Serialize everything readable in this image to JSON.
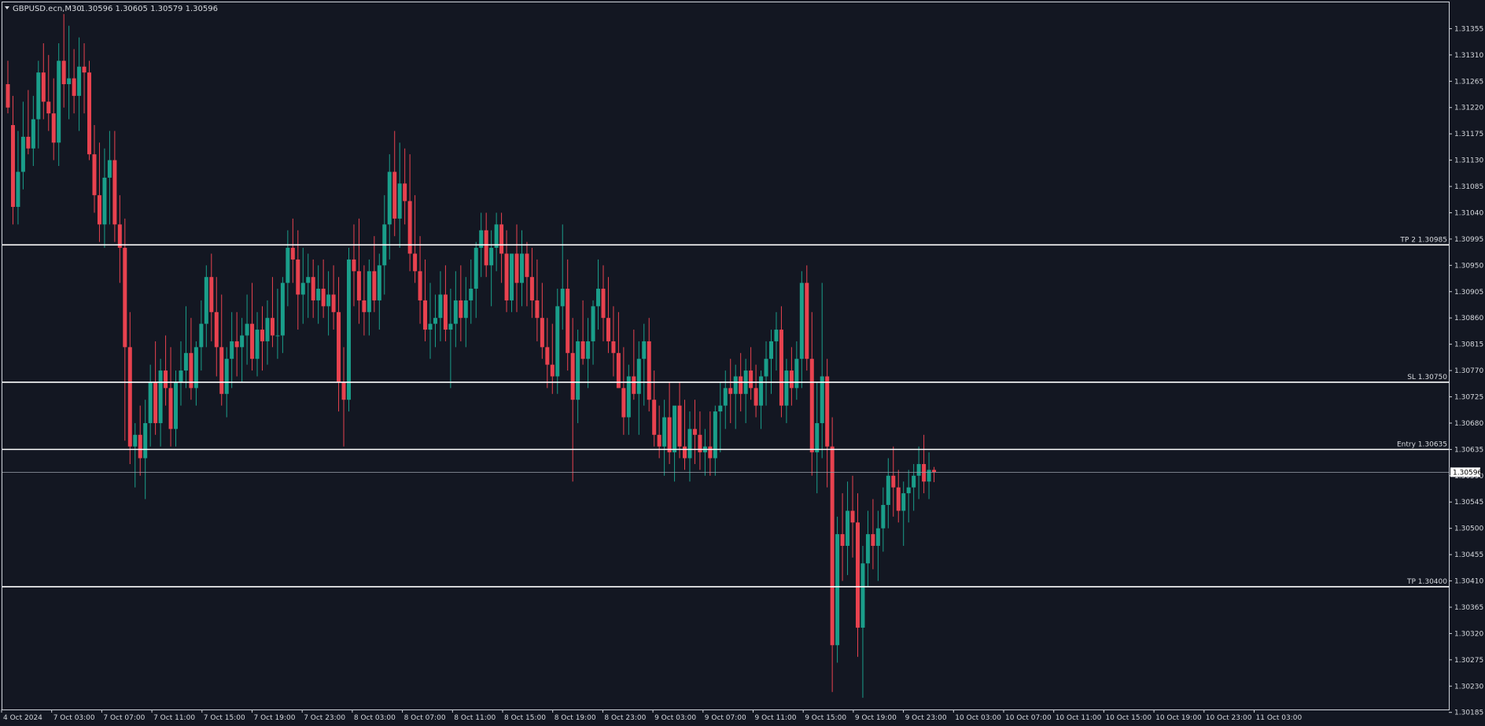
{
  "header": {
    "symbol": "GBPUSD.ecn,M30",
    "ohlc": "1.30596 1.30605 1.30579 1.30596"
  },
  "colors": {
    "background": "#131722",
    "frame": "#cfd3da",
    "text": "#d6d9de",
    "bull": "#1a9e8a",
    "bear": "#e8424f",
    "level_line": "#ffffff"
  },
  "chart_data": {
    "type": "candlestick",
    "timeframe": "M30",
    "ylim": [
      1.3019,
      1.314
    ],
    "y_ticks": [
      "1.31355",
      "1.31310",
      "1.31265",
      "1.31220",
      "1.31175",
      "1.31130",
      "1.31085",
      "1.31040",
      "1.30995",
      "1.30950",
      "1.30905",
      "1.30860",
      "1.30815",
      "1.30770",
      "1.30725",
      "1.30680",
      "1.30635",
      "1.30590",
      "1.30545",
      "1.30500",
      "1.30455",
      "1.30410",
      "1.30365",
      "1.30320",
      "1.30275",
      "1.30230",
      "1.30185"
    ],
    "x_labels": [
      "4 Oct 2024",
      "7 Oct 03:00",
      "7 Oct 07:00",
      "7 Oct 11:00",
      "7 Oct 15:00",
      "7 Oct 19:00",
      "7 Oct 23:00",
      "8 Oct 03:00",
      "8 Oct 07:00",
      "8 Oct 11:00",
      "8 Oct 15:00",
      "8 Oct 19:00",
      "8 Oct 23:00",
      "9 Oct 03:00",
      "9 Oct 07:00",
      "9 Oct 11:00",
      "9 Oct 15:00",
      "9 Oct 19:00",
      "9 Oct 23:00",
      "10 Oct 03:00",
      "10 Oct 07:00",
      "10 Oct 11:00",
      "10 Oct 15:00",
      "10 Oct 19:00",
      "10 Oct 23:00",
      "11 Oct 03:00"
    ],
    "current_price": "1.30596",
    "levels": [
      {
        "label": "TP 2 1.30985",
        "price": 1.30985
      },
      {
        "label": "SL 1.30750",
        "price": 1.3075
      },
      {
        "label": "Entry 1.30635",
        "price": 1.30635
      },
      {
        "label": "TP 1.30400",
        "price": 1.304
      }
    ],
    "ohlc": [
      [
        1.3126,
        1.313,
        1.3121,
        1.3122
      ],
      [
        1.3119,
        1.3124,
        1.3102,
        1.3105
      ],
      [
        1.3105,
        1.3118,
        1.3102,
        1.3111
      ],
      [
        1.3111,
        1.3123,
        1.3108,
        1.3117
      ],
      [
        1.3117,
        1.3125,
        1.3114,
        1.3115
      ],
      [
        1.3115,
        1.3124,
        1.3112,
        1.312
      ],
      [
        1.312,
        1.313,
        1.3115,
        1.3128
      ],
      [
        1.3128,
        1.3133,
        1.312,
        1.3123
      ],
      [
        1.3123,
        1.3131,
        1.3118,
        1.3121
      ],
      [
        1.3121,
        1.3127,
        1.3113,
        1.3116
      ],
      [
        1.3116,
        1.3133,
        1.3112,
        1.313
      ],
      [
        1.313,
        1.3138,
        1.3122,
        1.3126
      ],
      [
        1.3126,
        1.3136,
        1.312,
        1.3127
      ],
      [
        1.3127,
        1.3132,
        1.3121,
        1.3124
      ],
      [
        1.3124,
        1.3134,
        1.3118,
        1.3129
      ],
      [
        1.3129,
        1.3133,
        1.3121,
        1.3128
      ],
      [
        1.3128,
        1.313,
        1.3113,
        1.3114
      ],
      [
        1.3114,
        1.3119,
        1.3104,
        1.3107
      ],
      [
        1.3107,
        1.3116,
        1.3099,
        1.3102
      ],
      [
        1.3102,
        1.3115,
        1.3098,
        1.311
      ],
      [
        1.311,
        1.3118,
        1.3102,
        1.3113
      ],
      [
        1.3113,
        1.3118,
        1.3099,
        1.3102
      ],
      [
        1.3102,
        1.3107,
        1.3092,
        1.3098
      ],
      [
        1.3098,
        1.3103,
        1.3065,
        1.3081
      ],
      [
        1.3081,
        1.3087,
        1.3061,
        1.3064
      ],
      [
        1.3064,
        1.3068,
        1.3057,
        1.3066
      ],
      [
        1.3066,
        1.3071,
        1.3059,
        1.3062
      ],
      [
        1.3062,
        1.3072,
        1.3055,
        1.3068
      ],
      [
        1.3068,
        1.3078,
        1.3064,
        1.3075
      ],
      [
        1.3075,
        1.3082,
        1.3066,
        1.3068
      ],
      [
        1.3068,
        1.3079,
        1.3064,
        1.3077
      ],
      [
        1.3077,
        1.3083,
        1.3071,
        1.3074
      ],
      [
        1.3074,
        1.3081,
        1.3064,
        1.3067
      ],
      [
        1.3067,
        1.3077,
        1.3064,
        1.3075
      ],
      [
        1.3075,
        1.3082,
        1.3071,
        1.3077
      ],
      [
        1.3077,
        1.3088,
        1.3074,
        1.308
      ],
      [
        1.308,
        1.3086,
        1.3072,
        1.3074
      ],
      [
        1.3074,
        1.3082,
        1.3071,
        1.3081
      ],
      [
        1.3081,
        1.3089,
        1.3077,
        1.3085
      ],
      [
        1.3085,
        1.3095,
        1.3081,
        1.3093
      ],
      [
        1.3093,
        1.3097,
        1.3082,
        1.3087
      ],
      [
        1.3087,
        1.3093,
        1.3076,
        1.3081
      ],
      [
        1.3081,
        1.309,
        1.3071,
        1.3073
      ],
      [
        1.3073,
        1.3081,
        1.3069,
        1.3079
      ],
      [
        1.3079,
        1.3087,
        1.3074,
        1.3082
      ],
      [
        1.3082,
        1.3087,
        1.3076,
        1.3081
      ],
      [
        1.3081,
        1.3086,
        1.3075,
        1.3083
      ],
      [
        1.3083,
        1.309,
        1.3078,
        1.3085
      ],
      [
        1.3085,
        1.3092,
        1.3077,
        1.3079
      ],
      [
        1.3079,
        1.3087,
        1.3076,
        1.3084
      ],
      [
        1.3084,
        1.3088,
        1.3077,
        1.3082
      ],
      [
        1.3082,
        1.3089,
        1.3078,
        1.3086
      ],
      [
        1.3086,
        1.3093,
        1.3081,
        1.3083
      ],
      [
        1.3083,
        1.3091,
        1.3079,
        1.3083
      ],
      [
        1.3083,
        1.3093,
        1.308,
        1.3092
      ],
      [
        1.3092,
        1.3101,
        1.3088,
        1.3098
      ],
      [
        1.3098,
        1.3103,
        1.3092,
        1.3096
      ],
      [
        1.3096,
        1.3101,
        1.3084,
        1.309
      ],
      [
        1.309,
        1.3098,
        1.3085,
        1.3092
      ],
      [
        1.3092,
        1.3097,
        1.3086,
        1.3093
      ],
      [
        1.3093,
        1.3096,
        1.3086,
        1.3089
      ],
      [
        1.3089,
        1.3095,
        1.3085,
        1.3091
      ],
      [
        1.3091,
        1.3096,
        1.3086,
        1.3088
      ],
      [
        1.3088,
        1.3094,
        1.3083,
        1.309
      ],
      [
        1.309,
        1.3095,
        1.3084,
        1.3087
      ],
      [
        1.3087,
        1.3093,
        1.307,
        1.3075
      ],
      [
        1.3075,
        1.3081,
        1.3064,
        1.3072
      ],
      [
        1.3072,
        1.3098,
        1.307,
        1.3096
      ],
      [
        1.3096,
        1.3102,
        1.3088,
        1.3094
      ],
      [
        1.3094,
        1.3103,
        1.3085,
        1.3089
      ],
      [
        1.3089,
        1.3095,
        1.3083,
        1.3087
      ],
      [
        1.3087,
        1.3096,
        1.3083,
        1.3094
      ],
      [
        1.3094,
        1.31,
        1.3087,
        1.3089
      ],
      [
        1.3089,
        1.3097,
        1.3084,
        1.3095
      ],
      [
        1.3095,
        1.3107,
        1.309,
        1.3102
      ],
      [
        1.3102,
        1.3114,
        1.3096,
        1.3111
      ],
      [
        1.3111,
        1.3118,
        1.31,
        1.3103
      ],
      [
        1.3103,
        1.3116,
        1.3098,
        1.3109
      ],
      [
        1.3109,
        1.3115,
        1.3102,
        1.3106
      ],
      [
        1.3106,
        1.3114,
        1.3094,
        1.3097
      ],
      [
        1.3097,
        1.3107,
        1.3092,
        1.3094
      ],
      [
        1.3094,
        1.31,
        1.3085,
        1.3089
      ],
      [
        1.3089,
        1.3096,
        1.3082,
        1.3084
      ],
      [
        1.3084,
        1.3092,
        1.3079,
        1.3085
      ],
      [
        1.3085,
        1.309,
        1.3081,
        1.3086
      ],
      [
        1.3086,
        1.3094,
        1.3082,
        1.309
      ],
      [
        1.309,
        1.3095,
        1.3082,
        1.3084
      ],
      [
        1.3084,
        1.3091,
        1.3074,
        1.3085
      ],
      [
        1.3085,
        1.3094,
        1.3081,
        1.3089
      ],
      [
        1.3089,
        1.3095,
        1.3082,
        1.3086
      ],
      [
        1.3086,
        1.3093,
        1.3081,
        1.3089
      ],
      [
        1.3089,
        1.3096,
        1.3085,
        1.3091
      ],
      [
        1.3091,
        1.3099,
        1.3086,
        1.3098
      ],
      [
        1.3098,
        1.3104,
        1.3093,
        1.3101
      ],
      [
        1.3101,
        1.3104,
        1.3093,
        1.3095
      ],
      [
        1.3095,
        1.3101,
        1.3088,
        1.3098
      ],
      [
        1.3098,
        1.3104,
        1.3094,
        1.3102
      ],
      [
        1.3102,
        1.3104,
        1.3092,
        1.3097
      ],
      [
        1.3097,
        1.3101,
        1.3087,
        1.3089
      ],
      [
        1.3089,
        1.3097,
        1.3087,
        1.3097
      ],
      [
        1.3097,
        1.3102,
        1.3087,
        1.3092
      ],
      [
        1.3092,
        1.3101,
        1.3088,
        1.3097
      ],
      [
        1.3097,
        1.3099,
        1.3088,
        1.3093
      ],
      [
        1.3093,
        1.3098,
        1.3086,
        1.3089
      ],
      [
        1.3089,
        1.3096,
        1.3082,
        1.3086
      ],
      [
        1.3086,
        1.3092,
        1.3079,
        1.3081
      ],
      [
        1.3081,
        1.3086,
        1.3074,
        1.3078
      ],
      [
        1.3078,
        1.3085,
        1.3073,
        1.3076
      ],
      [
        1.3076,
        1.3091,
        1.3073,
        1.3088
      ],
      [
        1.3088,
        1.3102,
        1.3084,
        1.3091
      ],
      [
        1.3091,
        1.3096,
        1.3077,
        1.308
      ],
      [
        1.308,
        1.3086,
        1.3058,
        1.3072
      ],
      [
        1.3072,
        1.3084,
        1.3068,
        1.3082
      ],
      [
        1.3082,
        1.3089,
        1.3078,
        1.3079
      ],
      [
        1.3079,
        1.3086,
        1.3074,
        1.3082
      ],
      [
        1.3082,
        1.3089,
        1.3078,
        1.3088
      ],
      [
        1.3088,
        1.3096,
        1.3084,
        1.3091
      ],
      [
        1.3091,
        1.3095,
        1.3082,
        1.3086
      ],
      [
        1.3086,
        1.3093,
        1.308,
        1.3082
      ],
      [
        1.3082,
        1.3088,
        1.3076,
        1.308
      ],
      [
        1.308,
        1.3087,
        1.3074,
        1.3074
      ],
      [
        1.3074,
        1.3081,
        1.3066,
        1.3069
      ],
      [
        1.3069,
        1.3078,
        1.3066,
        1.3076
      ],
      [
        1.3076,
        1.3084,
        1.3072,
        1.3073
      ],
      [
        1.3073,
        1.3082,
        1.3066,
        1.3079
      ],
      [
        1.3079,
        1.3085,
        1.3071,
        1.3082
      ],
      [
        1.3082,
        1.3086,
        1.307,
        1.3072
      ],
      [
        1.3072,
        1.3077,
        1.3064,
        1.3066
      ],
      [
        1.3066,
        1.3071,
        1.3062,
        1.3064
      ],
      [
        1.3064,
        1.3072,
        1.3059,
        1.3069
      ],
      [
        1.3069,
        1.3075,
        1.3061,
        1.3063
      ],
      [
        1.3063,
        1.307,
        1.3058,
        1.3071
      ],
      [
        1.3071,
        1.3075,
        1.3062,
        1.3064
      ],
      [
        1.3064,
        1.3072,
        1.306,
        1.3062
      ],
      [
        1.3062,
        1.307,
        1.3058,
        1.3067
      ],
      [
        1.3067,
        1.3072,
        1.3061,
        1.3066
      ],
      [
        1.3066,
        1.307,
        1.306,
        1.3063
      ],
      [
        1.3063,
        1.3067,
        1.3059,
        1.3064
      ],
      [
        1.3064,
        1.307,
        1.3059,
        1.3062
      ],
      [
        1.3062,
        1.3071,
        1.3059,
        1.307
      ],
      [
        1.307,
        1.3075,
        1.3063,
        1.3071
      ],
      [
        1.3071,
        1.3077,
        1.3067,
        1.3074
      ],
      [
        1.3074,
        1.3079,
        1.3068,
        1.3073
      ],
      [
        1.3073,
        1.3078,
        1.3067,
        1.3076
      ],
      [
        1.3076,
        1.308,
        1.307,
        1.3073
      ],
      [
        1.3073,
        1.3079,
        1.3068,
        1.3077
      ],
      [
        1.3077,
        1.3081,
        1.3072,
        1.3074
      ],
      [
        1.3074,
        1.3078,
        1.3069,
        1.3071
      ],
      [
        1.3071,
        1.3077,
        1.3067,
        1.3076
      ],
      [
        1.3076,
        1.3082,
        1.3071,
        1.3079
      ],
      [
        1.3079,
        1.3084,
        1.3073,
        1.3082
      ],
      [
        1.3082,
        1.3087,
        1.3077,
        1.3084
      ],
      [
        1.3084,
        1.3088,
        1.3069,
        1.3071
      ],
      [
        1.3071,
        1.3079,
        1.3068,
        1.3077
      ],
      [
        1.3077,
        1.3081,
        1.3071,
        1.3074
      ],
      [
        1.3074,
        1.3082,
        1.3072,
        1.3079
      ],
      [
        1.3079,
        1.3094,
        1.3074,
        1.3092
      ],
      [
        1.3092,
        1.3095,
        1.3077,
        1.3079
      ],
      [
        1.3079,
        1.3087,
        1.3059,
        1.3063
      ],
      [
        1.3063,
        1.3075,
        1.3056,
        1.3068
      ],
      [
        1.3068,
        1.3092,
        1.3062,
        1.3076
      ],
      [
        1.3076,
        1.3079,
        1.3057,
        1.3064
      ],
      [
        1.3064,
        1.3069,
        1.3022,
        1.303
      ],
      [
        1.303,
        1.3052,
        1.3027,
        1.3049
      ],
      [
        1.3049,
        1.3056,
        1.3041,
        1.3047
      ],
      [
        1.3047,
        1.3058,
        1.3042,
        1.3053
      ],
      [
        1.3053,
        1.3059,
        1.3045,
        1.3051
      ],
      [
        1.3051,
        1.3056,
        1.3028,
        1.3033
      ],
      [
        1.3033,
        1.3047,
        1.3021,
        1.3044
      ],
      [
        1.3044,
        1.3053,
        1.304,
        1.3049
      ],
      [
        1.3049,
        1.3055,
        1.3043,
        1.3047
      ],
      [
        1.3047,
        1.3053,
        1.3041,
        1.305
      ],
      [
        1.305,
        1.3057,
        1.3046,
        1.3054
      ],
      [
        1.3054,
        1.3062,
        1.305,
        1.3059
      ],
      [
        1.3059,
        1.3064,
        1.3052,
        1.3057
      ],
      [
        1.3057,
        1.306,
        1.3051,
        1.3053
      ],
      [
        1.3053,
        1.3058,
        1.3047,
        1.3056
      ],
      [
        1.3056,
        1.306,
        1.3051,
        1.3057
      ],
      [
        1.3057,
        1.3061,
        1.3053,
        1.3059
      ],
      [
        1.3059,
        1.3064,
        1.3055,
        1.3061
      ],
      [
        1.3061,
        1.3066,
        1.3056,
        1.3058
      ],
      [
        1.3058,
        1.3063,
        1.3055,
        1.306
      ],
      [
        1.306,
        1.30605,
        1.30579,
        1.30596
      ]
    ]
  }
}
